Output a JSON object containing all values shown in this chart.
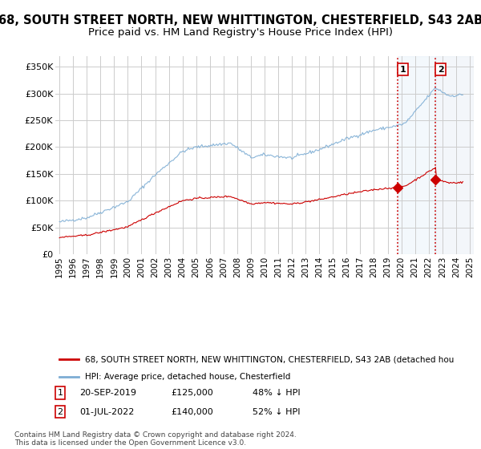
{
  "title": "68, SOUTH STREET NORTH, NEW WHITTINGTON, CHESTERFIELD, S43 2AB",
  "subtitle": "Price paid vs. HM Land Registry's House Price Index (HPI)",
  "title_fontsize": 10.5,
  "subtitle_fontsize": 9.5,
  "ylabel_ticks": [
    "£0",
    "£50K",
    "£100K",
    "£150K",
    "£200K",
    "£250K",
    "£300K",
    "£350K"
  ],
  "ytick_values": [
    0,
    50000,
    100000,
    150000,
    200000,
    250000,
    300000,
    350000
  ],
  "ylim": [
    0,
    370000
  ],
  "xlim_start": 1994.7,
  "xlim_end": 2025.3,
  "background_color": "#ffffff",
  "plot_bg_color": "#ffffff",
  "grid_color": "#cccccc",
  "hpi_color": "#7dadd4",
  "price_color": "#cc0000",
  "sale1_date": 2019.72,
  "sale1_price": 125000,
  "sale2_date": 2022.5,
  "sale2_price": 140000,
  "vline_color": "#cc0000",
  "shade_color": "#d8eaf7",
  "legend_line1": "68, SOUTH STREET NORTH, NEW WHITTINGTON, CHESTERFIELD, S43 2AB (detached hou",
  "legend_line2": "HPI: Average price, detached house, Chesterfield",
  "footer": "Contains HM Land Registry data © Crown copyright and database right 2024.\nThis data is licensed under the Open Government Licence v3.0.",
  "table_rows": [
    {
      "num": "1",
      "date": "20-SEP-2019",
      "price": "£125,000",
      "pct": "48% ↓ HPI"
    },
    {
      "num": "2",
      "date": "01-JUL-2022",
      "price": "£140,000",
      "pct": "52% ↓ HPI"
    }
  ]
}
